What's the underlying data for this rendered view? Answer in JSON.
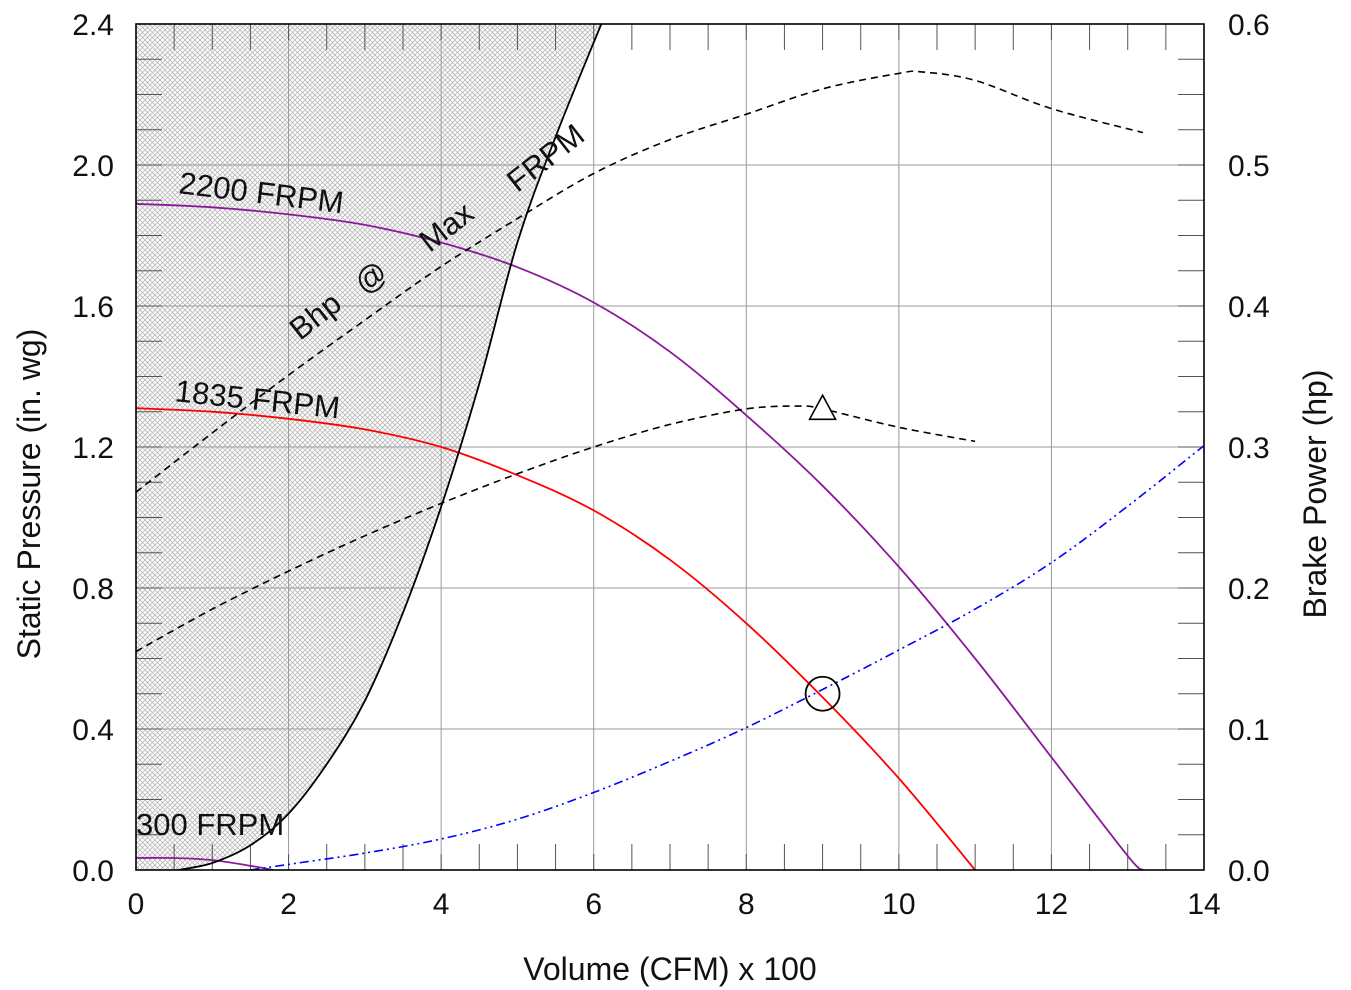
{
  "chart_data": {
    "type": "line",
    "title": "",
    "xlabel": "Volume (CFM) x 100",
    "ylabel": "Static Pressure (in. wg)",
    "y2label": "Brake Power (hp)",
    "xlim": [
      0,
      14
    ],
    "ylim": [
      0,
      2.4
    ],
    "y2lim": [
      0,
      0.6
    ],
    "grid": true,
    "x_ticks": [
      "0",
      "2",
      "4",
      "6",
      "8",
      "10",
      "12",
      "14"
    ],
    "y_ticks": [
      "0.0",
      "0.4",
      "0.8",
      "1.2",
      "1.6",
      "2.0",
      "2.4"
    ],
    "y2_ticks": [
      "0.0",
      "0.1",
      "0.2",
      "0.3",
      "0.4",
      "0.5",
      "0.6"
    ],
    "colors": {
      "rpm_2200": "#8b1a9b",
      "rpm_1835": "#ff0000",
      "rpm_300": "#8b1a9b",
      "system": "#0000ff",
      "limit": "#000000",
      "bhp": "#000000",
      "hatch": "#b8b8b8"
    },
    "series": [
      {
        "key": "rpm_2200",
        "axis": "left",
        "style": "solid",
        "x": [
          0,
          1,
          2,
          3,
          4,
          5,
          6,
          7,
          8,
          9,
          10,
          11,
          12,
          13,
          13.2
        ],
        "y": [
          1.89,
          1.88,
          1.86,
          1.83,
          1.78,
          1.71,
          1.61,
          1.47,
          1.29,
          1.09,
          0.86,
          0.6,
          0.32,
          0.04,
          0.0
        ]
      },
      {
        "key": "rpm_1835",
        "axis": "left",
        "style": "solid",
        "x": [
          0,
          1,
          2,
          3,
          4,
          5,
          6,
          7,
          8,
          9,
          10,
          11
        ],
        "y": [
          1.31,
          1.3,
          1.28,
          1.25,
          1.2,
          1.12,
          1.02,
          0.88,
          0.7,
          0.49,
          0.26,
          0.0
        ]
      },
      {
        "key": "rpm_300",
        "axis": "left",
        "style": "solid",
        "x": [
          0,
          0.5,
          1.0,
          1.5,
          1.8
        ],
        "y": [
          0.034,
          0.034,
          0.028,
          0.012,
          0.0
        ]
      },
      {
        "key": "limit",
        "axis": "left",
        "style": "solid",
        "x": [
          0.55,
          1,
          1.5,
          2,
          2.5,
          3,
          3.5,
          4,
          4.5,
          5,
          5.5,
          6.1
        ],
        "y": [
          0.0,
          0.02,
          0.07,
          0.16,
          0.3,
          0.48,
          0.73,
          1.03,
          1.38,
          1.78,
          2.08,
          2.4
        ]
      },
      {
        "key": "system",
        "axis": "right",
        "style": "dashdot",
        "x": [
          1.5,
          2,
          3,
          4,
          5,
          6,
          7,
          8,
          9,
          10,
          11,
          12,
          13,
          14
        ],
        "y": [
          0.0,
          0.004,
          0.012,
          0.022,
          0.036,
          0.055,
          0.077,
          0.101,
          0.128,
          0.156,
          0.185,
          0.218,
          0.258,
          0.301
        ]
      },
      {
        "key": "bhp",
        "axis": "right",
        "style": "dashed",
        "x": [
          0,
          1,
          2,
          3,
          4,
          5,
          6,
          7,
          8,
          8.7,
          9,
          10,
          11
        ],
        "y": [
          0.155,
          0.185,
          0.212,
          0.237,
          0.26,
          0.281,
          0.3,
          0.316,
          0.327,
          0.329,
          0.327,
          0.314,
          0.304
        ]
      },
      {
        "key": "bhp",
        "axis": "right",
        "style": "dashed",
        "x": [
          0,
          1,
          2,
          3,
          4,
          5,
          6,
          7,
          8,
          9,
          10,
          10.3,
          11,
          12,
          13.2
        ],
        "y": [
          0.268,
          0.31,
          0.351,
          0.39,
          0.428,
          0.462,
          0.494,
          0.518,
          0.536,
          0.554,
          0.565,
          0.566,
          0.56,
          0.54,
          0.523
        ]
      }
    ],
    "hatch_region": {
      "x": [
        0,
        0.55,
        1,
        1.5,
        2,
        2.5,
        3,
        3.5,
        4,
        4.5,
        5,
        5.5,
        6.1,
        0
      ],
      "y": [
        0,
        0.0,
        0.02,
        0.07,
        0.16,
        0.3,
        0.48,
        0.73,
        1.03,
        1.38,
        1.78,
        2.08,
        2.4,
        2.4
      ]
    },
    "markers": [
      {
        "shape": "circle",
        "axis": "left",
        "x": 9.0,
        "y": 0.5
      },
      {
        "shape": "triangle",
        "axis": "left",
        "x": 9.0,
        "y": 1.31
      }
    ],
    "annotations": [
      {
        "text": "2200 FRPM",
        "x": 0.55,
        "y": 1.92,
        "angle": 7
      },
      {
        "text": "1835 FRPM",
        "x": 0.5,
        "y": 1.33,
        "angle": 6
      },
      {
        "text": "300 FRPM",
        "x": 0.0,
        "y": 0.1,
        "angle": 0
      },
      {
        "text": "Bhp",
        "x": 2.15,
        "y": 1.5,
        "angle": -38
      },
      {
        "text": "@",
        "x": 3.0,
        "y": 1.63,
        "angle": -38
      },
      {
        "text": "Max",
        "x": 3.85,
        "y": 1.75,
        "angle": -38
      },
      {
        "text": "FRPM",
        "x": 5.0,
        "y": 1.92,
        "angle": -38
      }
    ]
  }
}
